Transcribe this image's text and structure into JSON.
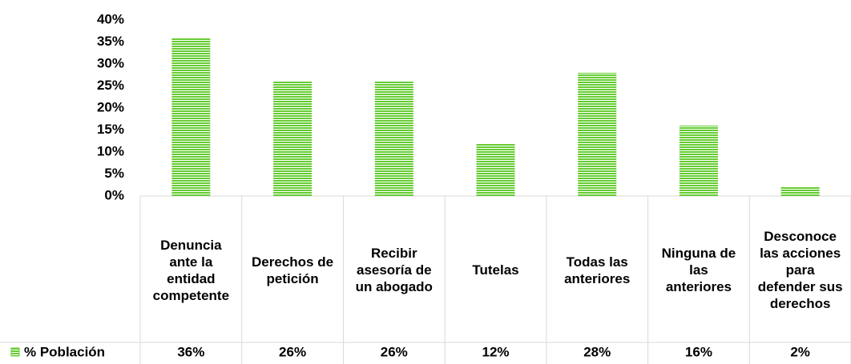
{
  "chart_data": {
    "type": "bar",
    "categories": [
      "Denuncia ante la entidad competente",
      "Derechos de petición",
      "Recibir asesoría de un abogado",
      "Tutelas",
      "Todas las anteriores",
      "Ninguna de las anteriores",
      "Desconoce las acciones para defender sus derechos"
    ],
    "series": [
      {
        "name": "% Población",
        "color": "#66cc33",
        "values": [
          36,
          26,
          26,
          12,
          28,
          16,
          2
        ],
        "value_labels": [
          "36%",
          "26%",
          "26%",
          "12%",
          "28%",
          "16%",
          "2%"
        ]
      }
    ],
    "ylim": [
      0,
      40
    ],
    "yticks": [
      {
        "value": 0,
        "label": "0%"
      },
      {
        "value": 5,
        "label": "5%"
      },
      {
        "value": 10,
        "label": "10%"
      },
      {
        "value": 15,
        "label": "15%"
      },
      {
        "value": 20,
        "label": "20%"
      },
      {
        "value": 25,
        "label": "25%"
      },
      {
        "value": 30,
        "label": "30%"
      },
      {
        "value": 35,
        "label": "35%"
      },
      {
        "value": 40,
        "label": "40%"
      }
    ]
  }
}
